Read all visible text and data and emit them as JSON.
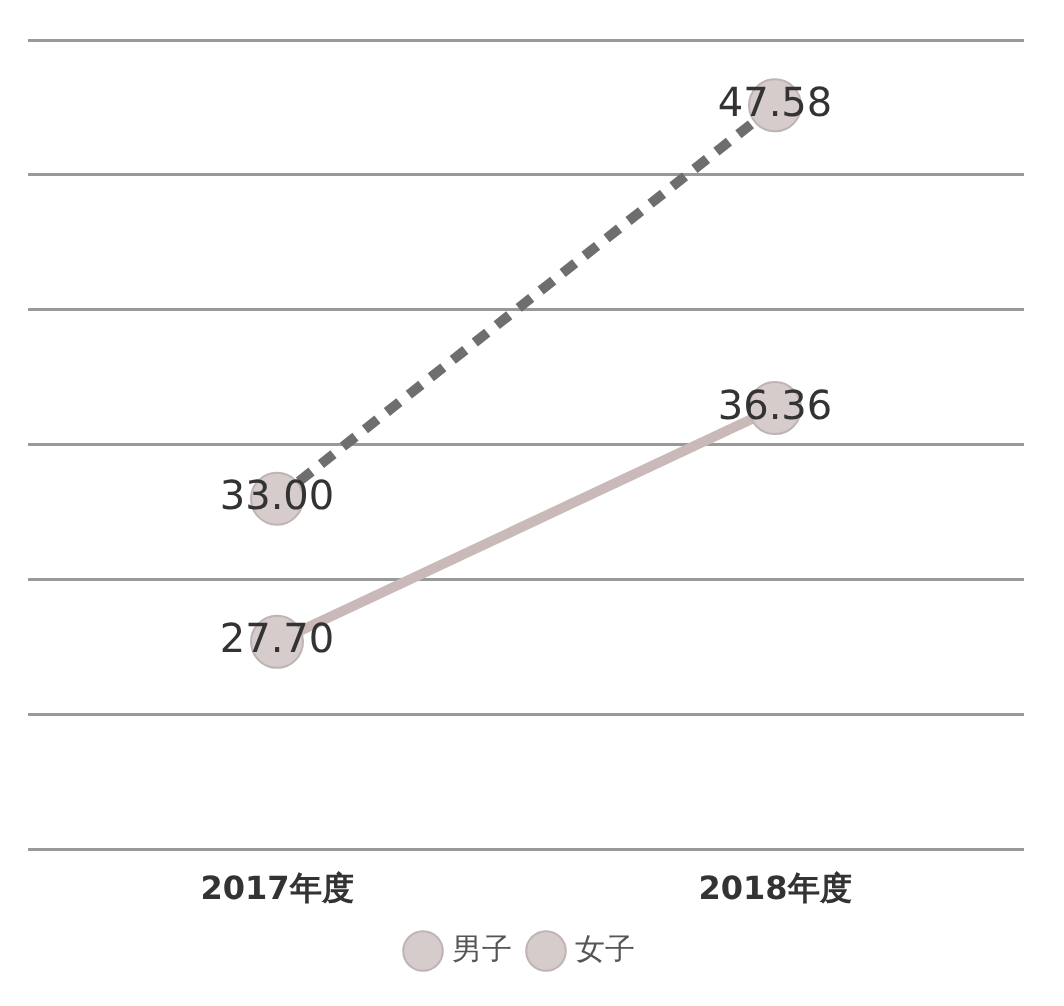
{
  "chart_data": {
    "type": "line",
    "categories": [
      "2017年度",
      "2018年度"
    ],
    "series": [
      {
        "name": "男子",
        "color": "#c9b9b9",
        "values": [
          27.7,
          36.36
        ],
        "value_labels": [
          "27.70",
          "36.36"
        ],
        "line_style": "solid"
      },
      {
        "name": "女子",
        "color": "#6e6e6e",
        "values": [
          33.0,
          47.58
        ],
        "value_labels": [
          "33.00",
          "47.58"
        ],
        "line_style": "dashed"
      }
    ],
    "ylim": [
      20,
      50
    ],
    "yticks": [
      {
        "value": 20,
        "label": null
      },
      {
        "value": 25,
        "label": null
      },
      {
        "value": 30,
        "label": null
      },
      {
        "value": 35,
        "label": null
      },
      {
        "value": 40,
        "label": null
      },
      {
        "value": 45,
        "label": null
      },
      {
        "value": 50,
        "label": null
      }
    ],
    "tick_labels": "x",
    "grid": "y",
    "legend": "bottom",
    "marker": "circle"
  }
}
